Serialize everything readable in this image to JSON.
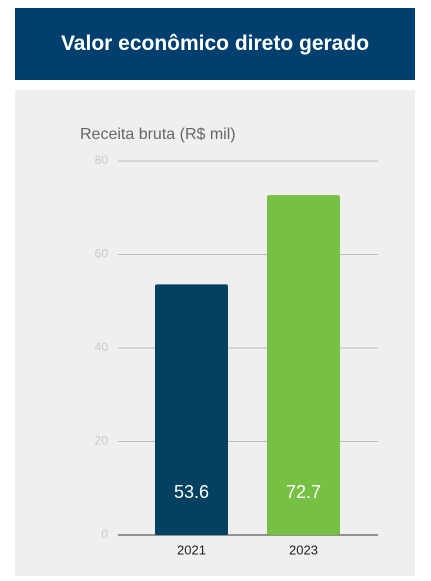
{
  "header": {
    "title": "Valor econômico direto gerado"
  },
  "chart_data": {
    "type": "bar",
    "title": "Receita bruta (R$ mil)",
    "categories": [
      "2021",
      "2023"
    ],
    "values": [
      53.6,
      72.7
    ],
    "colors": [
      "#02415f",
      "#76c043"
    ],
    "ylim": [
      0,
      80
    ],
    "yticks": [
      0,
      20,
      40,
      60,
      80
    ],
    "grid": true
  }
}
